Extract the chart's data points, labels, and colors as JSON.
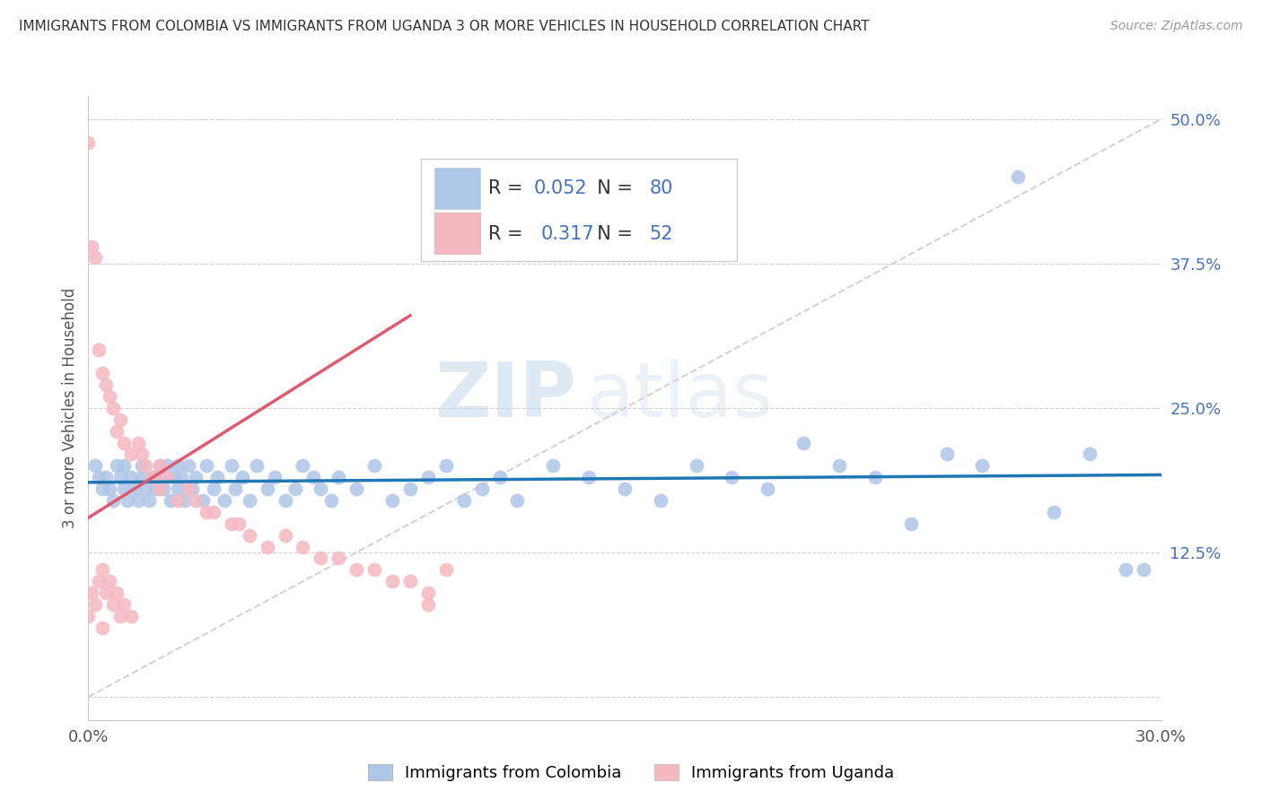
{
  "title": "IMMIGRANTS FROM COLOMBIA VS IMMIGRANTS FROM UGANDA 3 OR MORE VEHICLES IN HOUSEHOLD CORRELATION CHART",
  "source": "Source: ZipAtlas.com",
  "ylabel": "3 or more Vehicles in Household",
  "xlim": [
    0.0,
    0.3
  ],
  "ylim": [
    -0.02,
    0.52
  ],
  "x_ticks": [
    0.0,
    0.05,
    0.1,
    0.15,
    0.2,
    0.25,
    0.3
  ],
  "x_tick_labels": [
    "0.0%",
    "",
    "",
    "",
    "",
    "",
    "30.0%"
  ],
  "y_ticks": [
    0.0,
    0.125,
    0.25,
    0.375,
    0.5
  ],
  "y_tick_labels": [
    "",
    "12.5%",
    "25.0%",
    "37.5%",
    "50.0%"
  ],
  "colombia_color": "#aec6e8",
  "uganda_color": "#f4b8c1",
  "colombia_line_color": "#1f77b4",
  "uganda_line_color": "#e05a6e",
  "R_colombia": 0.052,
  "N_colombia": 80,
  "R_uganda": 0.317,
  "N_uganda": 52,
  "colombia_x": [
    0.002,
    0.003,
    0.004,
    0.005,
    0.006,
    0.007,
    0.008,
    0.009,
    0.01,
    0.01,
    0.011,
    0.012,
    0.013,
    0.014,
    0.015,
    0.015,
    0.016,
    0.017,
    0.018,
    0.019,
    0.02,
    0.02,
    0.021,
    0.022,
    0.023,
    0.024,
    0.025,
    0.025,
    0.026,
    0.027,
    0.028,
    0.029,
    0.03,
    0.032,
    0.033,
    0.035,
    0.036,
    0.038,
    0.04,
    0.041,
    0.043,
    0.045,
    0.047,
    0.05,
    0.052,
    0.055,
    0.058,
    0.06,
    0.063,
    0.065,
    0.068,
    0.07,
    0.075,
    0.08,
    0.085,
    0.09,
    0.095,
    0.1,
    0.105,
    0.11,
    0.115,
    0.12,
    0.13,
    0.14,
    0.15,
    0.16,
    0.17,
    0.18,
    0.19,
    0.2,
    0.21,
    0.22,
    0.23,
    0.24,
    0.25,
    0.26,
    0.27,
    0.28,
    0.29,
    0.295
  ],
  "colombia_y": [
    0.2,
    0.19,
    0.18,
    0.19,
    0.18,
    0.17,
    0.2,
    0.19,
    0.18,
    0.2,
    0.17,
    0.19,
    0.18,
    0.17,
    0.2,
    0.19,
    0.18,
    0.17,
    0.19,
    0.18,
    0.2,
    0.19,
    0.18,
    0.2,
    0.17,
    0.19,
    0.18,
    0.2,
    0.19,
    0.17,
    0.2,
    0.18,
    0.19,
    0.17,
    0.2,
    0.18,
    0.19,
    0.17,
    0.2,
    0.18,
    0.19,
    0.17,
    0.2,
    0.18,
    0.19,
    0.17,
    0.18,
    0.2,
    0.19,
    0.18,
    0.17,
    0.19,
    0.18,
    0.2,
    0.17,
    0.18,
    0.19,
    0.2,
    0.17,
    0.18,
    0.19,
    0.17,
    0.2,
    0.19,
    0.18,
    0.17,
    0.2,
    0.19,
    0.18,
    0.22,
    0.2,
    0.19,
    0.15,
    0.21,
    0.2,
    0.45,
    0.16,
    0.21,
    0.11,
    0.11
  ],
  "uganda_x": [
    0.0,
    0.0,
    0.001,
    0.001,
    0.002,
    0.002,
    0.003,
    0.003,
    0.004,
    0.004,
    0.005,
    0.005,
    0.006,
    0.006,
    0.007,
    0.007,
    0.008,
    0.008,
    0.009,
    0.009,
    0.01,
    0.01,
    0.012,
    0.012,
    0.014,
    0.015,
    0.016,
    0.018,
    0.02,
    0.02,
    0.022,
    0.025,
    0.028,
    0.03,
    0.033,
    0.035,
    0.04,
    0.042,
    0.045,
    0.05,
    0.055,
    0.06,
    0.065,
    0.07,
    0.075,
    0.08,
    0.085,
    0.09,
    0.095,
    0.095,
    0.004,
    0.1
  ],
  "uganda_y": [
    0.48,
    0.07,
    0.39,
    0.09,
    0.38,
    0.08,
    0.3,
    0.1,
    0.28,
    0.11,
    0.27,
    0.09,
    0.26,
    0.1,
    0.25,
    0.08,
    0.23,
    0.09,
    0.24,
    0.07,
    0.22,
    0.08,
    0.21,
    0.07,
    0.22,
    0.21,
    0.2,
    0.19,
    0.2,
    0.18,
    0.19,
    0.17,
    0.18,
    0.17,
    0.16,
    0.16,
    0.15,
    0.15,
    0.14,
    0.13,
    0.14,
    0.13,
    0.12,
    0.12,
    0.11,
    0.11,
    0.1,
    0.1,
    0.09,
    0.08,
    0.06,
    0.11
  ],
  "watermark_zip": "ZIP",
  "watermark_atlas": "atlas",
  "legend_label_colombia": "Immigrants from Colombia",
  "legend_label_uganda": "Immigrants from Uganda"
}
